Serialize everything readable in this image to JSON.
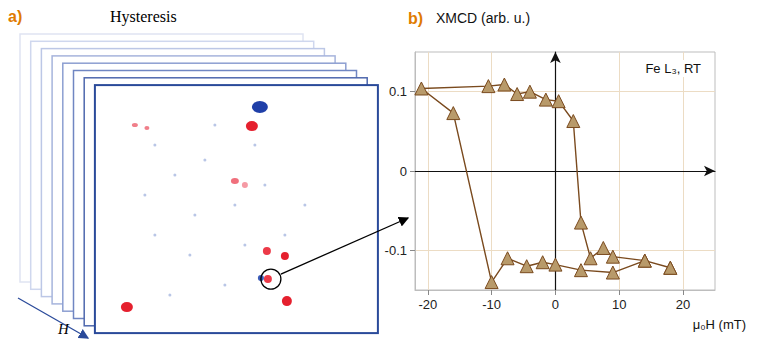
{
  "panel_a": {
    "label": "a)",
    "title": "Hysteresis",
    "axis_label": "H"
  },
  "chart_data": {
    "type": "line",
    "panel_label": "b)",
    "y_label": "XMCD (arb. u.)",
    "x_label": "μ₀H (mT)",
    "annotation": "Fe L₃, RT",
    "x": [
      18,
      14,
      9,
      4,
      0,
      -2,
      -4.5,
      -7.5,
      -10,
      -16,
      -21,
      -10.5,
      -8,
      -6,
      -4,
      -1.5,
      0.5,
      2.8,
      4,
      5.5,
      7.5,
      9,
      14,
      18
    ],
    "values": [
      -0.122,
      -0.113,
      -0.128,
      -0.125,
      -0.118,
      -0.115,
      -0.12,
      -0.11,
      -0.14,
      0.073,
      0.104,
      0.107,
      0.109,
      0.097,
      0.1,
      0.09,
      0.088,
      0.063,
      -0.065,
      -0.11,
      -0.097,
      -0.108,
      -0.113,
      -0.122
    ],
    "color": "#7a4a1e",
    "marker": "triangle",
    "xlim": [
      -22,
      25
    ],
    "ylim": [
      -0.15,
      0.15
    ],
    "xticks": [
      -20,
      -10,
      0,
      10,
      20
    ],
    "yticks": [
      -0.1,
      0,
      0.1
    ],
    "grid": true
  }
}
